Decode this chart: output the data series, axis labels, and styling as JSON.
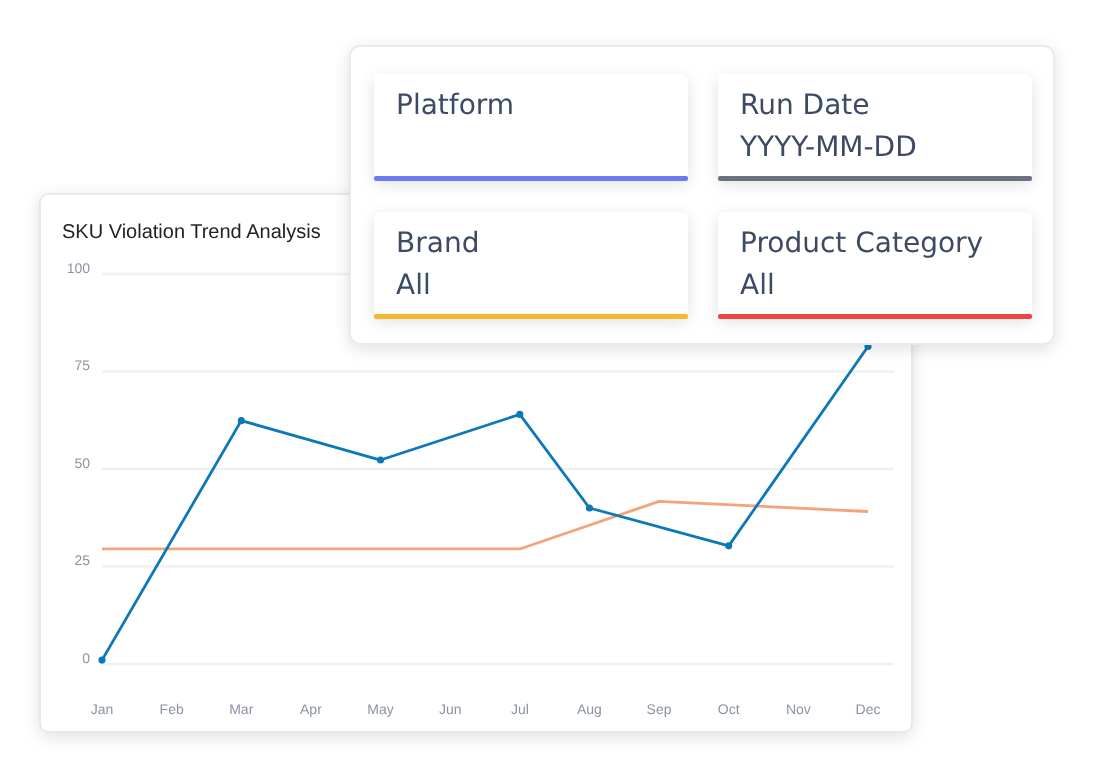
{
  "chart_data": [
    {
      "type": "line",
      "title": "SKU Violation Trend Analysis",
      "ylim": [
        0,
        100
      ],
      "categories": [
        "Jan",
        "Feb",
        "Mar",
        "Apr",
        "May",
        "Jun",
        "Jul",
        "Aug",
        "Sep",
        "Oct",
        "Nov",
        "Dec"
      ],
      "yticks": [
        0,
        25,
        50,
        75,
        100
      ],
      "grid": "y",
      "series": [
        {
          "color": "#f4a37a",
          "x": [
            "Jan",
            "Jul",
            "Sep",
            "Dec"
          ],
          "values": [
            29.5,
            29.5,
            41.7,
            39.1
          ],
          "marker": "none"
        },
        {
          "color": "#0b78b8",
          "x": [
            "Jan",
            "Mar",
            "May",
            "Jul",
            "Aug",
            "Oct",
            "Dec"
          ],
          "values": [
            1,
            62.4,
            52.3,
            64,
            40,
            30.3,
            81.4
          ],
          "marker": "circle"
        }
      ]
    },
    {
      "type": "other",
      "annotations": [
        "Platform",
        "Run Date",
        "YYYY-MM-DD",
        "Brand",
        "All",
        "Product Category",
        "All"
      ],
      "colors": [
        "#6b7cf0",
        "#6b7280",
        "#f5b82e",
        "#ef4444"
      ]
    }
  ]
}
